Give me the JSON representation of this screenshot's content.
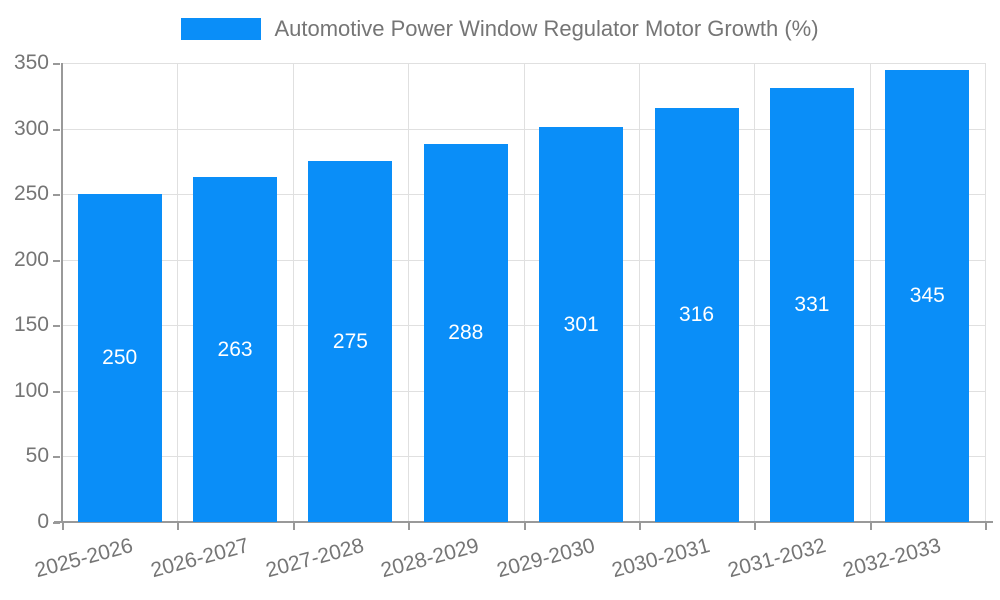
{
  "chart_data": {
    "type": "bar",
    "title": "Automotive Power Window Regulator Motor Growth (%)",
    "categories": [
      "2025-2026",
      "2026-2027",
      "2027-2028",
      "2028-2029",
      "2029-2030",
      "2030-2031",
      "2031-2032",
      "2032-2033"
    ],
    "values": [
      250,
      263,
      275,
      288,
      301,
      316,
      331,
      345
    ],
    "xlabel": "",
    "ylabel": "",
    "ylim": [
      0,
      350
    ],
    "ytick_step": 50,
    "ytick_labels": [
      "0",
      "50",
      "100",
      "150",
      "200",
      "250",
      "300",
      "350"
    ],
    "grid": true,
    "legend_position": "top",
    "bar_label_position": "inside-center"
  },
  "colors": {
    "bar_fill": "#0a8ef8",
    "bar_label_text": "#ffffff",
    "axis_text": "#757575",
    "title_text": "#757575",
    "grid_line": "#e0e0e0",
    "axis_line": "#999999"
  }
}
